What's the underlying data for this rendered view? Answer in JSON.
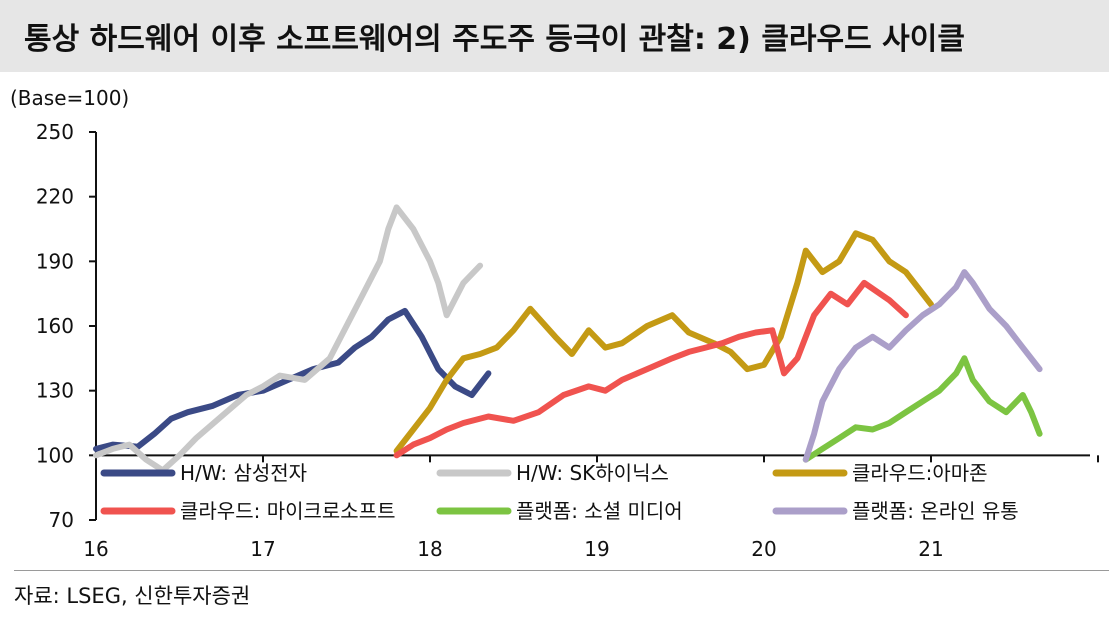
{
  "title": "통상 하드웨어 이후 소프트웨어의 주도주 등극이 관찰: 2) 클라우드 사이클",
  "source": "자료: LSEG, 신한투자증권",
  "chart_data": {
    "type": "line",
    "unit_label": "(Base=100)",
    "ylim": [
      70,
      250
    ],
    "y_ticks": [
      70,
      100,
      130,
      160,
      190,
      220,
      250
    ],
    "x_ticks": [
      "16",
      "17",
      "18",
      "19",
      "20",
      "21"
    ],
    "x_unit": "year (20xx, fractional)",
    "grid": false,
    "legend_position": "bottom",
    "series": [
      {
        "name": "H/W: 삼성전자",
        "color": "#3b4a86",
        "x": [
          2016.0,
          2016.1,
          2016.25,
          2016.35,
          2016.45,
          2016.55,
          2016.7,
          2016.85,
          2017.0,
          2017.15,
          2017.3,
          2017.45,
          2017.55,
          2017.65,
          2017.75,
          2017.85,
          2017.95,
          2018.05,
          2018.15,
          2018.25,
          2018.35
        ],
        "y": [
          103,
          105,
          104,
          110,
          117,
          120,
          123,
          128,
          130,
          135,
          140,
          143,
          150,
          155,
          163,
          167,
          155,
          140,
          132,
          128,
          138
        ]
      },
      {
        "name": "H/W: SK하이닉스",
        "color": "#c8c8c8",
        "x": [
          2016.0,
          2016.1,
          2016.2,
          2016.3,
          2016.4,
          2016.5,
          2016.6,
          2016.75,
          2016.9,
          2017.0,
          2017.1,
          2017.25,
          2017.4,
          2017.5,
          2017.6,
          2017.7,
          2017.75,
          2017.8,
          2017.9,
          2018.0,
          2018.05,
          2018.1,
          2018.2,
          2018.3
        ],
        "y": [
          100,
          103,
          105,
          98,
          93,
          100,
          108,
          118,
          128,
          132,
          137,
          135,
          145,
          160,
          175,
          190,
          205,
          215,
          205,
          190,
          180,
          165,
          180,
          188
        ]
      },
      {
        "name": "클라우드:아마존",
        "color": "#c49a14",
        "x": [
          2017.8,
          2017.9,
          2018.0,
          2018.1,
          2018.2,
          2018.3,
          2018.4,
          2018.5,
          2018.6,
          2018.75,
          2018.85,
          2018.95,
          2019.05,
          2019.15,
          2019.3,
          2019.45,
          2019.55,
          2019.7,
          2019.8,
          2019.9,
          2020.0,
          2020.1,
          2020.2,
          2020.25,
          2020.35,
          2020.45,
          2020.55,
          2020.65,
          2020.75,
          2020.85,
          2021.0
        ],
        "y": [
          102,
          112,
          122,
          135,
          145,
          147,
          150,
          158,
          168,
          155,
          147,
          158,
          150,
          152,
          160,
          165,
          157,
          152,
          148,
          140,
          142,
          155,
          180,
          195,
          185,
          190,
          203,
          200,
          190,
          185,
          170
        ]
      },
      {
        "name": "클라우드: 마이크로소프트",
        "color": "#f0534f",
        "x": [
          2017.8,
          2017.9,
          2018.0,
          2018.1,
          2018.2,
          2018.35,
          2018.5,
          2018.65,
          2018.8,
          2018.95,
          2019.05,
          2019.15,
          2019.3,
          2019.45,
          2019.55,
          2019.65,
          2019.75,
          2019.85,
          2019.95,
          2020.05,
          2020.12,
          2020.2,
          2020.3,
          2020.4,
          2020.5,
          2020.6,
          2020.75,
          2020.85
        ],
        "y": [
          100,
          105,
          108,
          112,
          115,
          118,
          116,
          120,
          128,
          132,
          130,
          135,
          140,
          145,
          148,
          150,
          152,
          155,
          157,
          158,
          138,
          145,
          165,
          175,
          170,
          180,
          172,
          165
        ]
      },
      {
        "name": "플랫폼: 소셜 미디어",
        "color": "#7cc442",
        "x": [
          2020.25,
          2020.35,
          2020.45,
          2020.55,
          2020.65,
          2020.75,
          2020.85,
          2020.95,
          2021.05,
          2021.15,
          2021.2,
          2021.25,
          2021.35,
          2021.45,
          2021.55,
          2021.6,
          2021.65
        ],
        "y": [
          98,
          103,
          108,
          113,
          112,
          115,
          120,
          125,
          130,
          138,
          145,
          135,
          125,
          120,
          128,
          120,
          110
        ]
      },
      {
        "name": "플랫폼: 온라인 유통",
        "color": "#ab9fc9",
        "x": [
          2020.25,
          2020.3,
          2020.35,
          2020.45,
          2020.55,
          2020.65,
          2020.75,
          2020.85,
          2020.95,
          2021.05,
          2021.15,
          2021.2,
          2021.25,
          2021.35,
          2021.45,
          2021.55,
          2021.65
        ],
        "y": [
          98,
          110,
          125,
          140,
          150,
          155,
          150,
          158,
          165,
          170,
          178,
          185,
          180,
          168,
          160,
          150,
          140
        ]
      }
    ]
  }
}
